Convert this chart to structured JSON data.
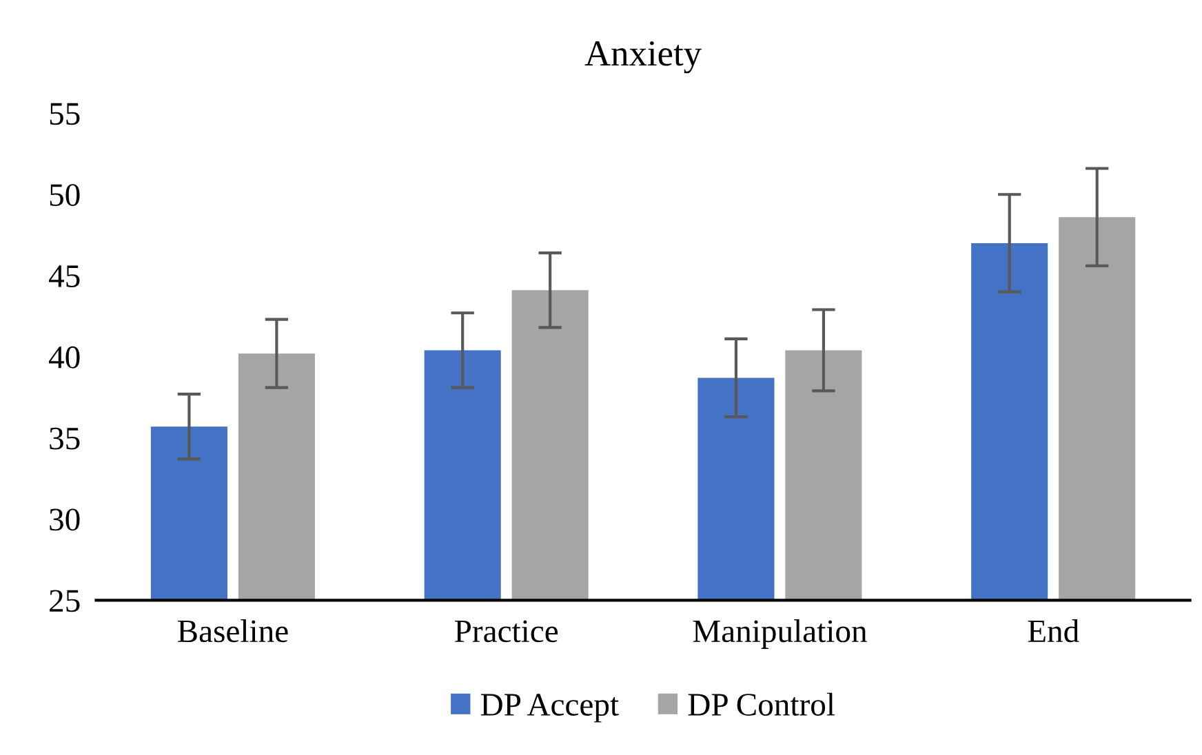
{
  "chart_data": {
    "type": "bar",
    "title": "Anxiety",
    "categories": [
      "Baseline",
      "Practice",
      "Manipulation",
      "End"
    ],
    "series": [
      {
        "name": "DP Accept",
        "color": "#4472c4",
        "values": [
          35.7,
          40.4,
          38.7,
          47.0
        ],
        "errors": [
          2.0,
          2.3,
          2.4,
          3.0
        ]
      },
      {
        "name": "DP Control",
        "color": "#a5a5a5",
        "values": [
          40.2,
          44.1,
          40.4,
          48.6
        ],
        "errors": [
          2.1,
          2.3,
          2.5,
          3.0
        ]
      }
    ],
    "ylim": [
      25,
      55
    ],
    "yticks": [
      25,
      30,
      35,
      40,
      45,
      50,
      55
    ],
    "grid": false,
    "legend": "bottom"
  }
}
